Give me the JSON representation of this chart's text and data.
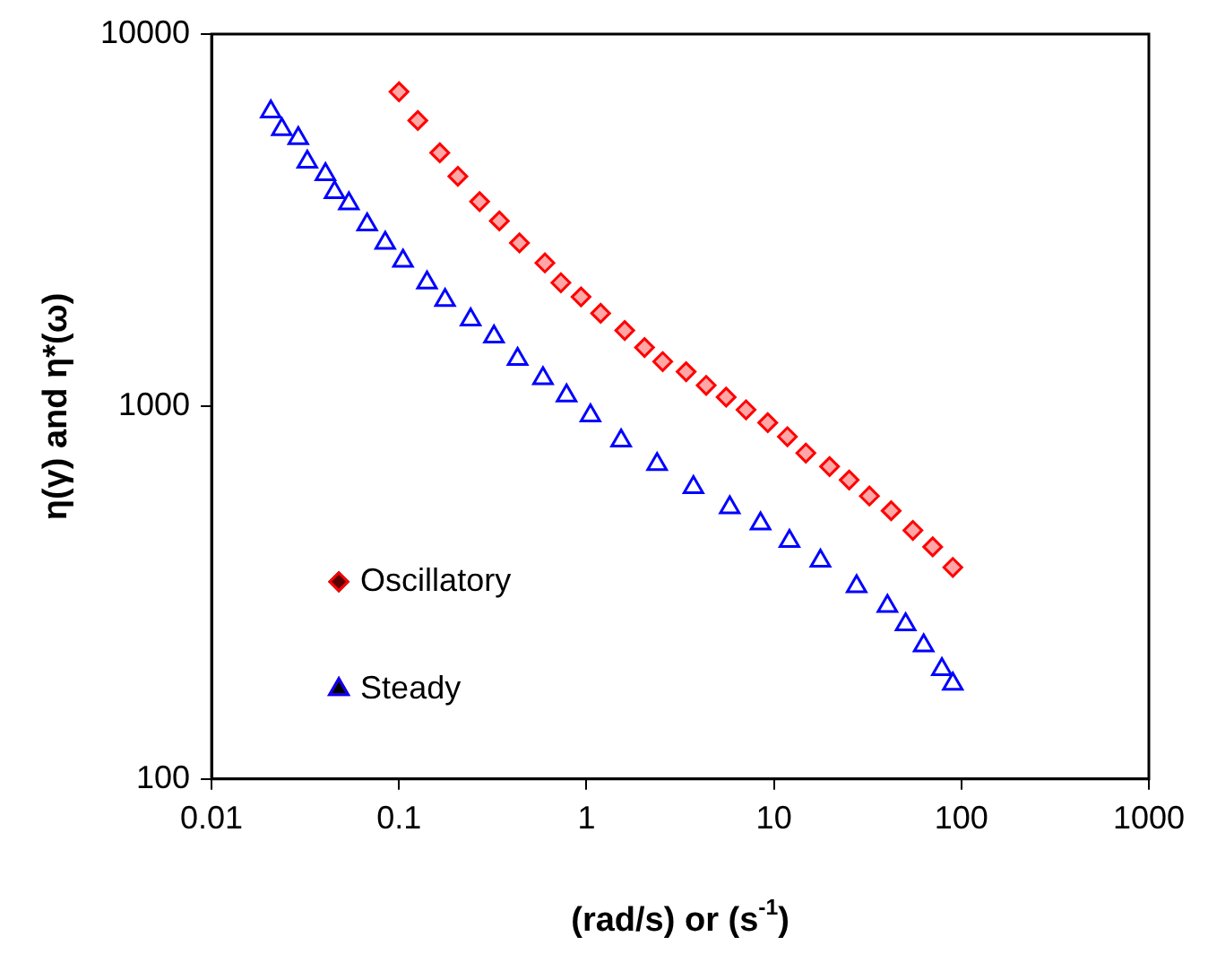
{
  "chart_data": {
    "type": "scatter",
    "xlabel": "(rad/s) or (s$^{-1}$)",
    "ylabel": "η(γ) and η*(ω)",
    "log": "xy",
    "grid": false,
    "legend": "bottom left",
    "xlim": [
      0.01,
      1000
    ],
    "xticks": [
      0.01,
      0.1,
      1,
      10,
      100,
      1000
    ],
    "ylim": [
      100,
      10000
    ],
    "yticks": [
      100,
      1000,
      10000
    ],
    "series": [
      {
        "name": "Oscillatory",
        "color": "#ff0000",
        "marker": "diamond",
        "x": [
          0.1,
          0.126,
          0.165,
          0.206,
          0.269,
          0.343,
          0.439,
          0.6,
          0.73,
          0.935,
          1.19,
          1.6,
          2.04,
          2.55,
          3.4,
          4.35,
          5.56,
          7.1,
          9.27,
          11.8,
          14.8,
          19.8,
          25.2,
          32.3,
          42.2,
          55.1,
          70.3,
          90
        ],
        "values": [
          7000,
          5860,
          4800,
          4150,
          3550,
          3150,
          2750,
          2430,
          2150,
          1970,
          1780,
          1600,
          1440,
          1320,
          1240,
          1140,
          1060,
          980,
          905,
          830,
          750,
          690,
          635,
          575,
          525,
          465,
          420,
          370
        ]
      },
      {
        "name": "Steady",
        "color": "#0000ff",
        "marker": "triangle",
        "x": [
          0.0207,
          0.0237,
          0.029,
          0.0324,
          0.0405,
          0.0453,
          0.054,
          0.0676,
          0.0844,
          0.105,
          0.141,
          0.176,
          0.241,
          0.321,
          0.429,
          0.586,
          0.783,
          1.05,
          1.53,
          2.38,
          3.72,
          5.81,
          8.48,
          12.1,
          17.7,
          27.6,
          40.3,
          50.4,
          62.9,
          78.7,
          90
        ],
        "values": [
          6190,
          5550,
          5250,
          4540,
          4200,
          3760,
          3510,
          3080,
          2750,
          2460,
          2150,
          1930,
          1710,
          1540,
          1340,
          1190,
          1070,
          945,
          810,
          700,
          607,
          536,
          485,
          435,
          385,
          329,
          291,
          260,
          228,
          197,
          180
        ]
      }
    ]
  }
}
